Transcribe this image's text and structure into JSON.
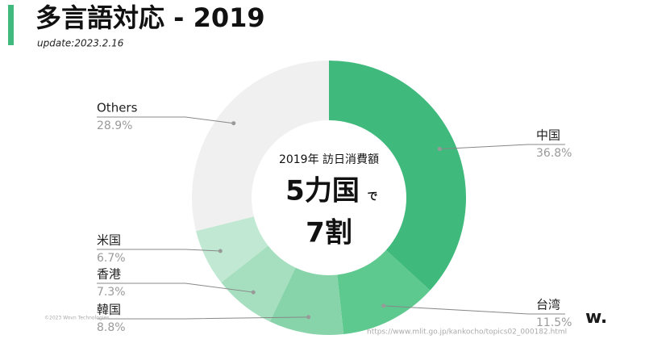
{
  "header": {
    "title": "多言語対応 - 2019",
    "subtitle": "update:2023.2.16"
  },
  "chart_data": {
    "type": "donut",
    "categories": [
      "中国",
      "台湾",
      "韓国",
      "香港",
      "米国",
      "Others"
    ],
    "values": [
      36.8,
      11.5,
      8.8,
      7.3,
      6.7,
      28.9
    ],
    "value_labels": [
      "36.8%",
      "11.5%",
      "8.8%",
      "7.3%",
      "6.7%",
      "28.9%"
    ],
    "colors": [
      "#3fb97c",
      "#5ec98f",
      "#88d4aa",
      "#a6dfbf",
      "#c1e8d2",
      "#f0f0f0"
    ],
    "center_label": "2019年 訪日消費額",
    "center_headline": "5力国",
    "center_headline_suffix": "で",
    "center_figure": "7割"
  },
  "footer": {
    "source": "https://www.mlit.go.jp/kankocho/topics02_000182.html",
    "copyright": "©2023 Wovn Technologies",
    "logo": "w."
  }
}
